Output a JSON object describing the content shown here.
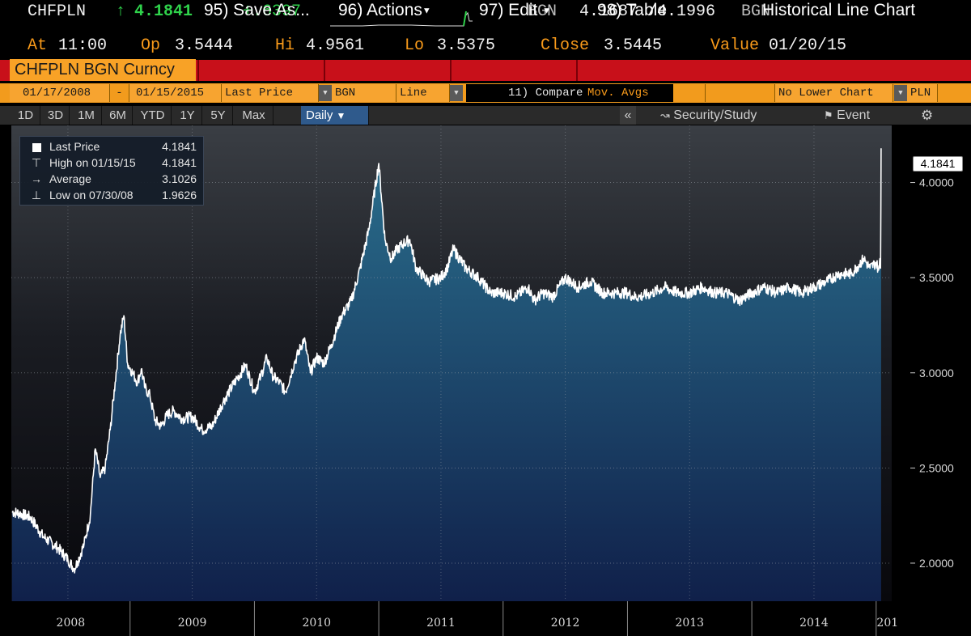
{
  "quote": {
    "ticker": "CHFPLN",
    "arrow": "↑",
    "last": "4.1841",
    "change": "+.6397",
    "source": "BGN",
    "bid_ask": "4.1687 /4.1996",
    "source2": "BGN",
    "at_label": "At",
    "at_value": "11:00",
    "op_label": "Op",
    "op_value": "3.5444",
    "hi_label": "Hi",
    "hi_value": "4.9561",
    "lo_label": "Lo",
    "lo_value": "3.5375",
    "close_label": "Close",
    "close_value": "3.5445",
    "value_label": "Value",
    "value_date": "01/20/15"
  },
  "menu": {
    "title": "CHFPLN BGN Curncy",
    "save": "95) Save As...",
    "actions": "96) Actions",
    "edit": "97) Edit",
    "table": "98) Table",
    "chart_name": "Historical Line Chart"
  },
  "settings": {
    "start_date": "01/17/2008",
    "dash": "-",
    "end_date": "01/15/2015",
    "field": "Last Price",
    "source": "BGN",
    "style": "Line",
    "compare": "11) Compare",
    "mov_avgs": "Mov. Avgs",
    "lower_chart": "No Lower Chart",
    "currency": "PLN"
  },
  "periods": [
    "1D",
    "3D",
    "1M",
    "6M",
    "YTD",
    "1Y",
    "5Y",
    "Max"
  ],
  "frequency": "Daily",
  "tools": {
    "collapse": "«",
    "security_study": "Security/Study",
    "event": "Event",
    "settings_glyph": "⚙"
  },
  "legend": [
    {
      "label": "Last Price",
      "value": "4.1841",
      "icon": "square-icon"
    },
    {
      "label": "High on 01/15/15",
      "value": "4.1841",
      "icon": "high-marker-icon"
    },
    {
      "label": "Average",
      "value": "3.1026",
      "icon": "average-marker-icon"
    },
    {
      "label": "Low on 07/30/08",
      "value": "1.9626",
      "icon": "low-marker-icon"
    }
  ],
  "last_tag": "4.1841",
  "colors": {
    "header_red": "#c8101a",
    "header_orange": "#f29b1d",
    "up_green": "#2fd24b",
    "label_orange": "#f89a1a",
    "line": "#ffffff",
    "area_top": "#2a6f8d",
    "area_bottom": "#10204a"
  },
  "chart_data": {
    "type": "area",
    "title": "",
    "xlabel": "",
    "ylabel": "",
    "ylim": [
      1.8,
      4.3
    ],
    "y_ticks": [
      "2.0000",
      "2.5000",
      "3.0000",
      "3.5000",
      "4.0000"
    ],
    "y_tick_values": [
      2.0,
      2.5,
      3.0,
      3.5,
      4.0
    ],
    "x_range": [
      2008.045,
      2015.125
    ],
    "year_labels": [
      "2008",
      "2009",
      "2010",
      "2011",
      "2012",
      "2013",
      "2014",
      "201"
    ],
    "year_boundaries": [
      2009,
      2010,
      2011,
      2012,
      2013,
      2014,
      2015
    ],
    "grid": true,
    "legend_position": "top-left",
    "series": [
      {
        "name": "Last Price",
        "x": [
          2008.05,
          2008.12,
          2008.2,
          2008.3,
          2008.42,
          2008.5,
          2008.55,
          2008.58,
          2008.63,
          2008.68,
          2008.72,
          2008.76,
          2008.8,
          2008.84,
          2008.88,
          2008.92,
          2008.95,
          2008.98,
          2009.02,
          2009.06,
          2009.09,
          2009.12,
          2009.16,
          2009.2,
          2009.25,
          2009.3,
          2009.35,
          2009.42,
          2009.5,
          2009.58,
          2009.66,
          2009.75,
          2009.85,
          2009.93,
          2010.0,
          2010.05,
          2010.1,
          2010.15,
          2010.2,
          2010.25,
          2010.32,
          2010.4,
          2010.45,
          2010.5,
          2010.56,
          2010.62,
          2010.7,
          2010.78,
          2010.85,
          2010.92,
          2011.0,
          2011.05,
          2011.1,
          2011.15,
          2011.2,
          2011.25,
          2011.3,
          2011.4,
          2011.5,
          2011.55,
          2011.6,
          2011.7,
          2011.8,
          2011.9,
          2012.0,
          2012.1,
          2012.2,
          2012.25,
          2012.32,
          2012.4,
          2012.5,
          2012.6,
          2012.7,
          2012.8,
          2012.9,
          2013.0,
          2013.05,
          2013.1,
          2013.2,
          2013.3,
          2013.4,
          2013.5,
          2013.6,
          2013.7,
          2013.8,
          2013.9,
          2014.0,
          2014.1,
          2014.2,
          2014.3,
          2014.4,
          2014.5,
          2014.6,
          2014.7,
          2014.8,
          2014.9,
          2014.95,
          2015.0,
          2015.02,
          2015.025,
          2015.03,
          2015.035,
          2015.04
        ],
        "y": [
          2.27,
          2.26,
          2.24,
          2.14,
          2.08,
          2.02,
          1.97,
          2.01,
          2.1,
          2.25,
          2.6,
          2.45,
          2.5,
          2.7,
          2.95,
          3.2,
          3.3,
          3.05,
          3.0,
          2.95,
          3.02,
          2.92,
          2.88,
          2.75,
          2.72,
          2.78,
          2.8,
          2.76,
          2.77,
          2.7,
          2.72,
          2.85,
          2.96,
          3.04,
          2.9,
          2.98,
          3.08,
          2.98,
          2.95,
          2.9,
          3.05,
          3.18,
          3.0,
          3.08,
          3.05,
          3.15,
          3.3,
          3.38,
          3.55,
          3.75,
          4.1,
          3.7,
          3.6,
          3.65,
          3.68,
          3.7,
          3.55,
          3.48,
          3.5,
          3.55,
          3.65,
          3.55,
          3.5,
          3.42,
          3.42,
          3.4,
          3.45,
          3.38,
          3.42,
          3.4,
          3.5,
          3.45,
          3.48,
          3.42,
          3.42,
          3.42,
          3.4,
          3.4,
          3.42,
          3.45,
          3.42,
          3.42,
          3.45,
          3.42,
          3.42,
          3.38,
          3.42,
          3.45,
          3.42,
          3.45,
          3.42,
          3.45,
          3.48,
          3.52,
          3.52,
          3.6,
          3.55,
          3.58,
          3.54,
          3.55,
          3.6,
          3.55,
          4.18
        ]
      }
    ]
  }
}
